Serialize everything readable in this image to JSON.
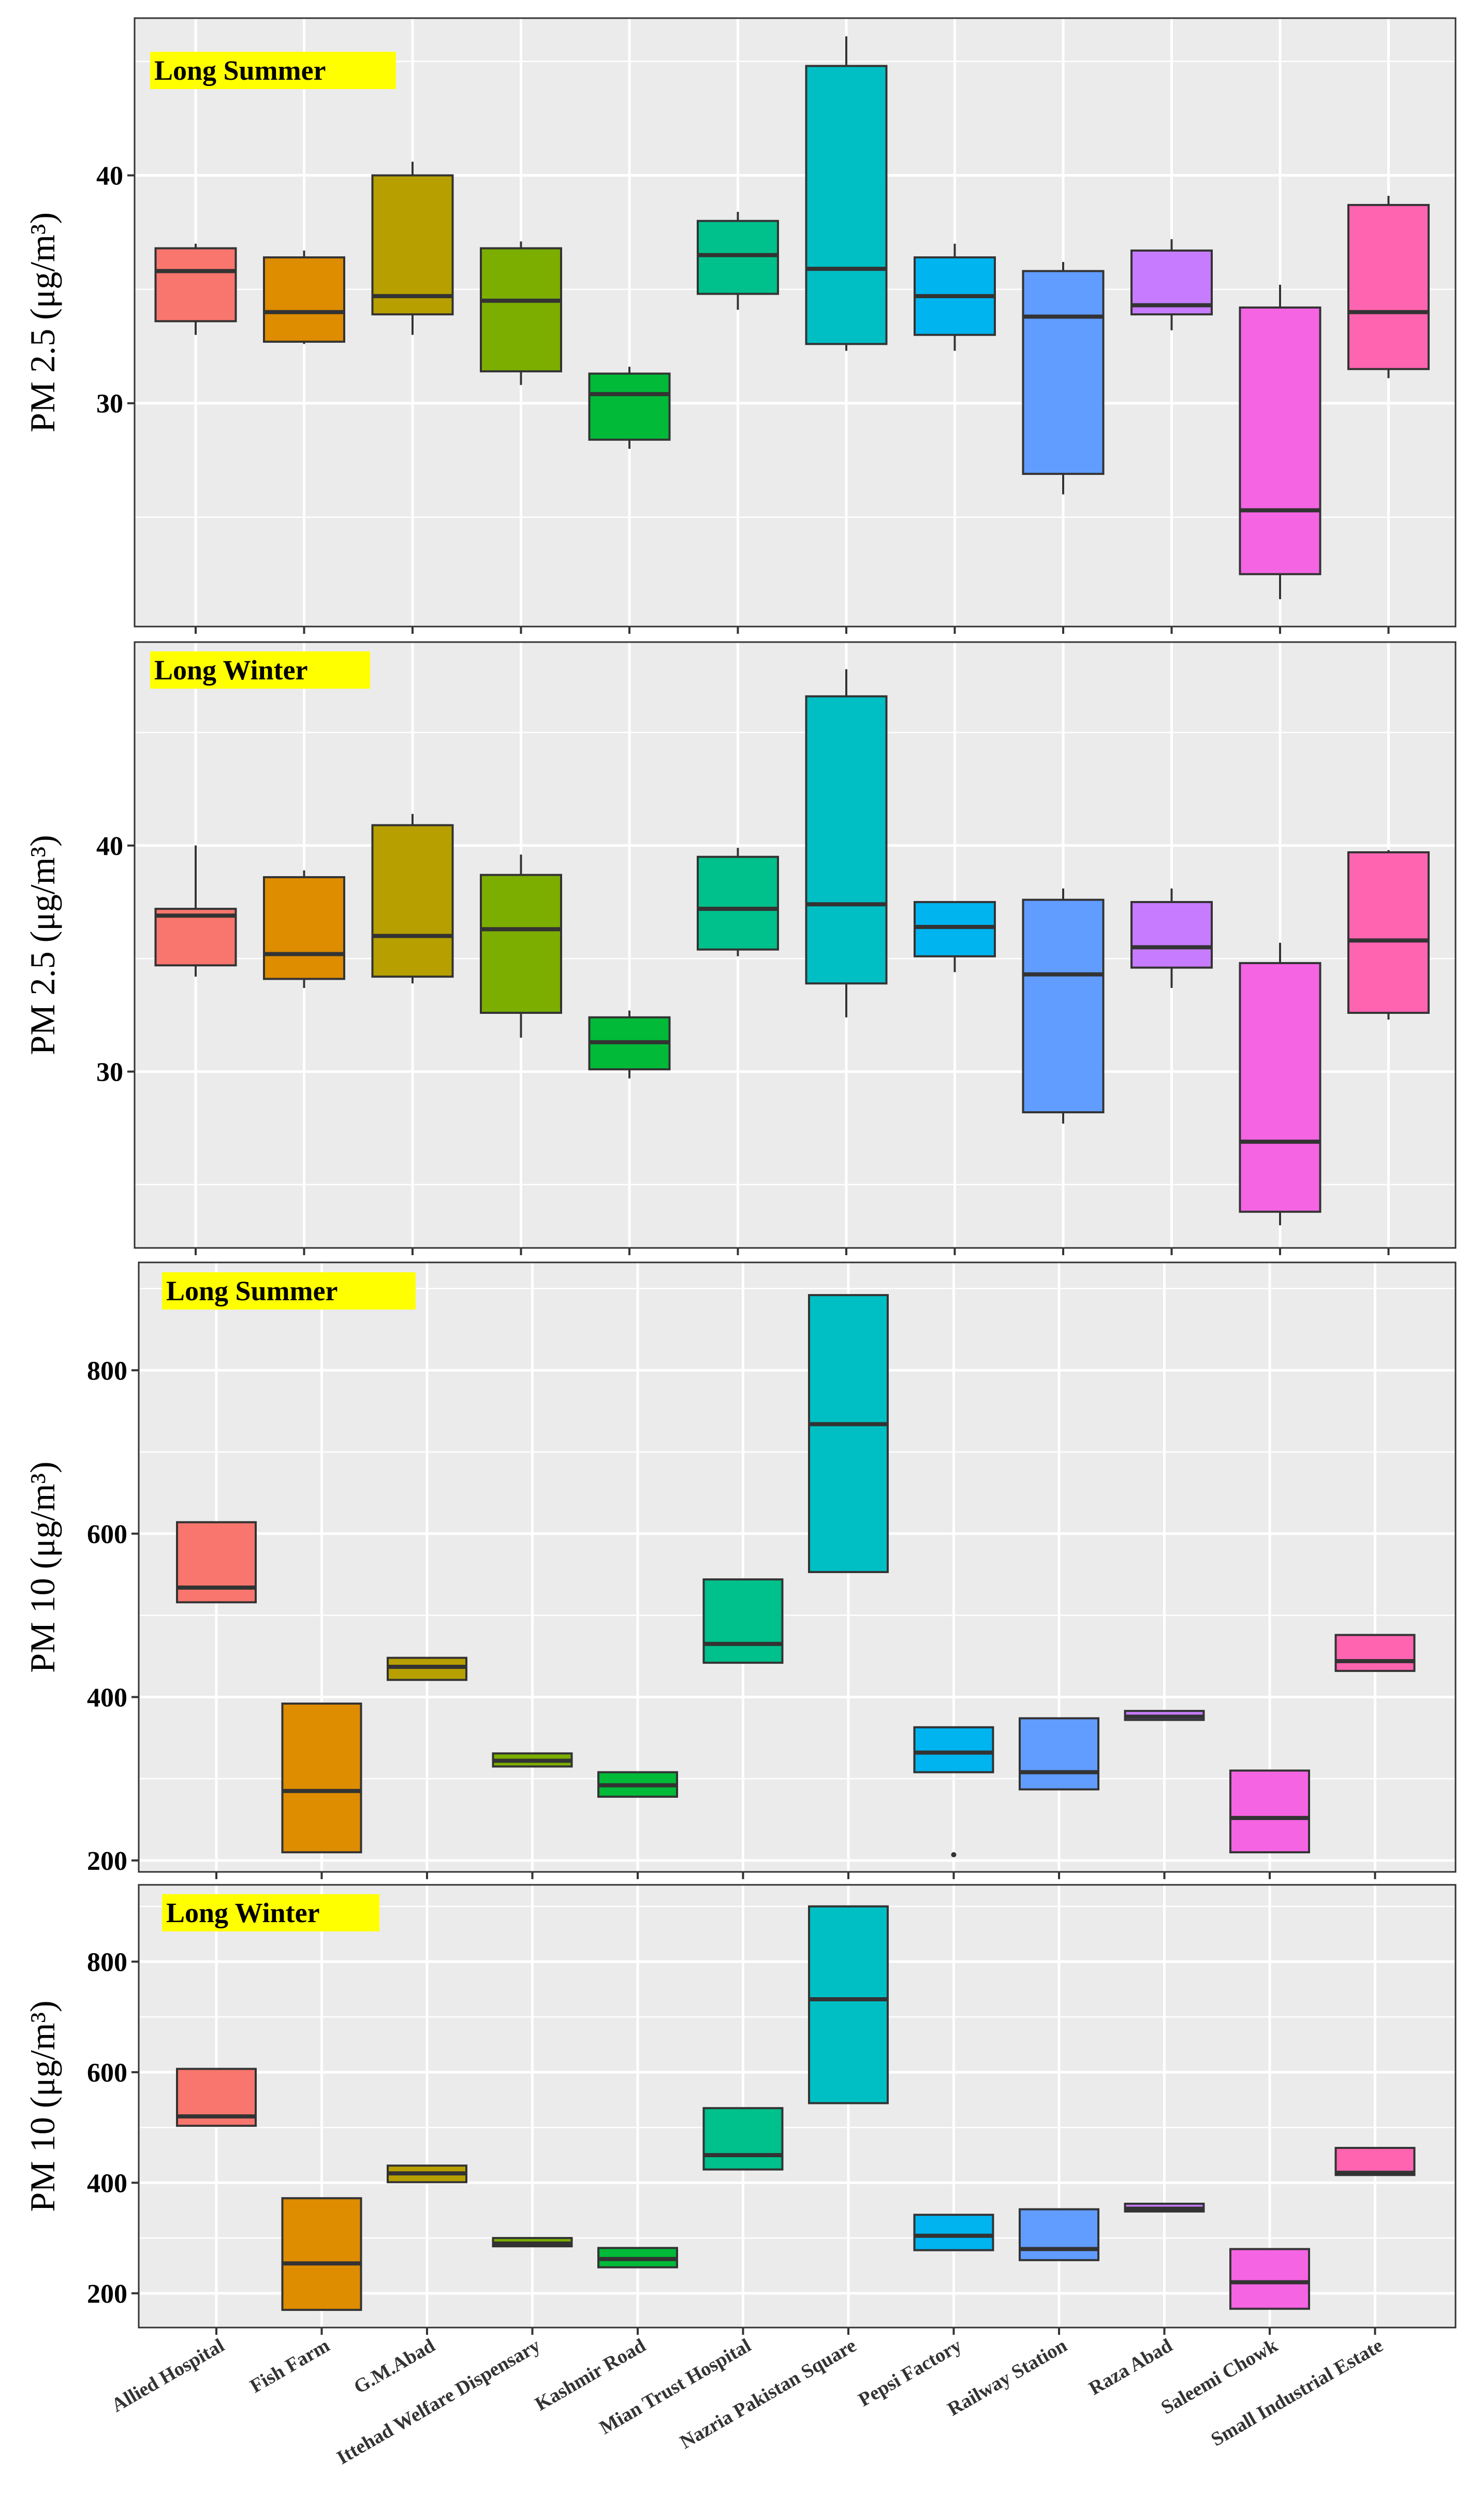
{
  "colors": {
    "panel_bg": "#EBEBEB",
    "grid": "#FFFFFF",
    "label_bg": "#FFFF00",
    "median": "#333333",
    "border": "#333333"
  },
  "chart_data": {
    "type": "boxplot",
    "categories": [
      "Allied Hospital",
      "Fish Farm",
      "G.M.Abad",
      "Ittehad Welfare Dispensary",
      "Kashmir Road",
      "Mian Trust Hospital",
      "Nazria Pakistan Square",
      "Pepsi Factory",
      "Railway Station",
      "Raza Abad",
      "Saleemi Chowk",
      "Small Industrial Estate"
    ],
    "category_colors": [
      "#F8766D",
      "#DE8C00",
      "#B79F00",
      "#7CAE00",
      "#00BA38",
      "#00C08B",
      "#00BFC4",
      "#00B4F0",
      "#619CFF",
      "#C77CFF",
      "#F564E3",
      "#FF64B0"
    ],
    "panels": [
      {
        "title": "Long Summer",
        "ylabel": "PM 2.5 (μg/m³)",
        "ylim": [
          20.2,
          46.9
        ],
        "yticks": [
          30,
          40
        ],
        "boxes": [
          {
            "min": 33.0,
            "q1": 33.6,
            "median": 35.8,
            "q3": 36.8,
            "max": 37.0
          },
          {
            "min": 32.6,
            "q1": 32.7,
            "median": 34.0,
            "q3": 36.4,
            "max": 36.7
          },
          {
            "min": 33.0,
            "q1": 33.9,
            "median": 34.7,
            "q3": 40.0,
            "max": 40.6
          },
          {
            "min": 30.8,
            "q1": 31.4,
            "median": 34.5,
            "q3": 36.8,
            "max": 37.1
          },
          {
            "min": 28.0,
            "q1": 28.4,
            "median": 30.4,
            "q3": 31.3,
            "max": 31.6
          },
          {
            "min": 34.1,
            "q1": 34.8,
            "median": 36.5,
            "q3": 38.0,
            "max": 38.4
          },
          {
            "min": 32.3,
            "q1": 32.6,
            "median": 35.9,
            "q3": 44.8,
            "max": 46.1
          },
          {
            "min": 32.3,
            "q1": 33.0,
            "median": 34.7,
            "q3": 36.4,
            "max": 37.0
          },
          {
            "min": 26.0,
            "q1": 26.9,
            "median": 33.8,
            "q3": 35.8,
            "max": 36.2
          },
          {
            "min": 33.2,
            "q1": 33.9,
            "median": 34.3,
            "q3": 36.7,
            "max": 37.2
          },
          {
            "min": 21.4,
            "q1": 22.5,
            "median": 25.3,
            "q3": 34.2,
            "max": 35.2
          },
          {
            "min": 31.1,
            "q1": 31.5,
            "median": 34.0,
            "q3": 38.7,
            "max": 39.1
          }
        ],
        "outliers": []
      },
      {
        "title": "Long Winter",
        "ylabel": "PM 2.5 (μg/m³)",
        "ylim": [
          22.2,
          49.0
        ],
        "yticks": [
          30,
          40
        ],
        "boxes": [
          {
            "min": 34.2,
            "q1": 34.7,
            "median": 36.9,
            "q3": 37.2,
            "max": 40.0
          },
          {
            "min": 33.7,
            "q1": 34.1,
            "median": 35.2,
            "q3": 38.6,
            "max": 38.9
          },
          {
            "min": 33.9,
            "q1": 34.2,
            "median": 36.0,
            "q3": 40.9,
            "max": 41.4
          },
          {
            "min": 31.5,
            "q1": 32.6,
            "median": 36.3,
            "q3": 38.7,
            "max": 39.6
          },
          {
            "min": 29.7,
            "q1": 30.1,
            "median": 31.3,
            "q3": 32.4,
            "max": 32.7
          },
          {
            "min": 35.1,
            "q1": 35.4,
            "median": 37.2,
            "q3": 39.5,
            "max": 39.9
          },
          {
            "min": 32.4,
            "q1": 33.9,
            "median": 37.4,
            "q3": 46.6,
            "max": 47.8
          },
          {
            "min": 34.4,
            "q1": 35.1,
            "median": 36.4,
            "q3": 37.5,
            "max": 37.5
          },
          {
            "min": 27.7,
            "q1": 28.2,
            "median": 34.3,
            "q3": 37.6,
            "max": 38.1
          },
          {
            "min": 33.7,
            "q1": 34.6,
            "median": 35.5,
            "q3": 37.5,
            "max": 38.1
          },
          {
            "min": 23.2,
            "q1": 23.8,
            "median": 26.9,
            "q3": 34.8,
            "max": 35.7
          },
          {
            "min": 32.3,
            "q1": 32.6,
            "median": 35.8,
            "q3": 39.7,
            "max": 39.8
          }
        ],
        "outliers": []
      },
      {
        "title": "Long Summer",
        "ylabel": "PM 10 (μg/m³)",
        "ylim": [
          186,
          932
        ],
        "yticks": [
          200,
          400,
          600,
          800
        ],
        "boxes": [
          {
            "min": 516,
            "q1": 516,
            "median": 534,
            "q3": 614,
            "max": 614
          },
          {
            "min": 210,
            "q1": 210,
            "median": 285,
            "q3": 392,
            "max": 392
          },
          {
            "min": 421,
            "q1": 421,
            "median": 437,
            "q3": 448,
            "max": 448
          },
          {
            "min": 315,
            "q1": 315,
            "median": 322,
            "q3": 331,
            "max": 331
          },
          {
            "min": 278,
            "q1": 278,
            "median": 292,
            "q3": 308,
            "max": 308
          },
          {
            "min": 442,
            "q1": 442,
            "median": 465,
            "q3": 544,
            "max": 544
          },
          {
            "min": 553,
            "q1": 553,
            "median": 734,
            "q3": 892,
            "max": 892
          },
          {
            "min": 308,
            "q1": 308,
            "median": 332,
            "q3": 363,
            "max": 363
          },
          {
            "min": 287,
            "q1": 287,
            "median": 308,
            "q3": 374,
            "max": 374
          },
          {
            "min": 372,
            "q1": 372,
            "median": 376,
            "q3": 383,
            "max": 383
          },
          {
            "min": 210,
            "q1": 210,
            "median": 252,
            "q3": 310,
            "max": 310
          },
          {
            "min": 432,
            "q1": 432,
            "median": 444,
            "q3": 476,
            "max": 476
          }
        ],
        "outliers": [
          {
            "category": "Pepsi Factory",
            "value": 207
          }
        ]
      },
      {
        "title": "Long Winter",
        "ylabel": "PM 10 (μg/m³)",
        "ylim": [
          138,
          939
        ],
        "yticks": [
          200,
          400,
          600,
          800
        ],
        "boxes": [
          {
            "min": 503,
            "q1": 503,
            "median": 520,
            "q3": 606,
            "max": 606
          },
          {
            "min": 170,
            "q1": 170,
            "median": 254,
            "q3": 372,
            "max": 372
          },
          {
            "min": 401,
            "q1": 401,
            "median": 417,
            "q3": 431,
            "max": 431
          },
          {
            "min": 285,
            "q1": 285,
            "median": 290,
            "q3": 300,
            "max": 300
          },
          {
            "min": 247,
            "q1": 247,
            "median": 262,
            "q3": 282,
            "max": 282
          },
          {
            "min": 424,
            "q1": 424,
            "median": 450,
            "q3": 535,
            "max": 535
          },
          {
            "min": 544,
            "q1": 544,
            "median": 732,
            "q3": 900,
            "max": 900
          },
          {
            "min": 278,
            "q1": 278,
            "median": 304,
            "q3": 342,
            "max": 342
          },
          {
            "min": 260,
            "q1": 260,
            "median": 280,
            "q3": 352,
            "max": 352
          },
          {
            "min": 348,
            "q1": 348,
            "median": 353,
            "q3": 362,
            "max": 362
          },
          {
            "min": 172,
            "q1": 172,
            "median": 220,
            "q3": 280,
            "max": 280
          },
          {
            "min": 414,
            "q1": 414,
            "median": 418,
            "q3": 463,
            "max": 463
          }
        ],
        "outliers": []
      }
    ]
  }
}
